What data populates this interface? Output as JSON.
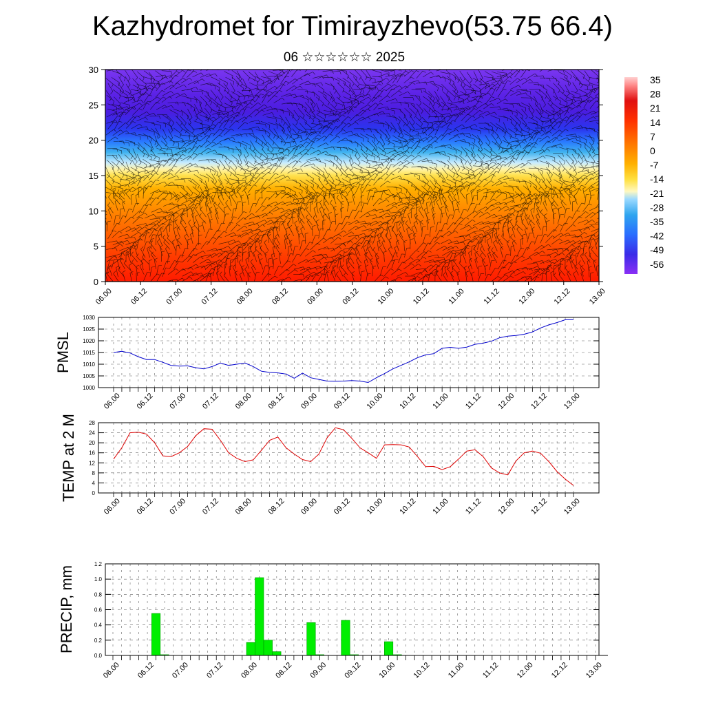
{
  "title": "Kazhydromet for Timirayzhevo(53.75 66.4)",
  "subtitle": "06 ☆☆☆☆☆☆ 2025",
  "time_labels": [
    "06.00",
    "06.12",
    "07.00",
    "07.12",
    "08.00",
    "08.12",
    "09.00",
    "09.12",
    "10.00",
    "10.12",
    "11.00",
    "11.12",
    "12.00",
    "12.12",
    "13.00"
  ],
  "colors": {
    "pmsl": "#0000cc",
    "temp": "#dd0000",
    "precip": "#00ee00",
    "precip_edge": "#009900"
  },
  "chart_data": [
    {
      "type": "heatmap",
      "name": "vertical cross-section temperature with wind barbs",
      "xlabel": "",
      "ylabel": "",
      "ylim": [
        0,
        30
      ],
      "yticks": [
        0,
        5,
        10,
        15,
        20,
        25,
        30
      ],
      "colorbar_labels": [
        "35",
        "28",
        "21",
        "14",
        "7",
        "0",
        "-7",
        "-14",
        "-21",
        "-28",
        "-35",
        "-42",
        "-49",
        "-56"
      ],
      "colorbar_range": [
        -60,
        38
      ]
    },
    {
      "type": "line",
      "ylabel": "PMSL",
      "ylim": [
        1000,
        1030
      ],
      "yticks": [
        1000,
        1005,
        1010,
        1015,
        1020,
        1025,
        1030
      ],
      "x": [
        "06.00",
        "06.03",
        "06.06",
        "06.09",
        "06.12",
        "06.15",
        "06.18",
        "06.21",
        "07.00",
        "07.03",
        "07.06",
        "07.09",
        "07.12",
        "07.15",
        "07.18",
        "07.21",
        "08.00",
        "08.03",
        "08.06",
        "08.09",
        "08.12",
        "08.15",
        "08.18",
        "08.21",
        "09.00",
        "09.03",
        "09.06",
        "09.09",
        "09.12",
        "09.15",
        "09.18",
        "09.21",
        "10.00",
        "10.03",
        "10.06",
        "10.09",
        "10.12",
        "10.15",
        "10.18",
        "10.21",
        "11.00",
        "11.03",
        "11.06",
        "11.09",
        "11.12",
        "11.15",
        "11.18",
        "11.21",
        "12.00",
        "12.03",
        "12.06",
        "12.09",
        "12.12",
        "12.15",
        "12.18",
        "12.21",
        "13.00"
      ],
      "values": [
        1015,
        1015.5,
        1014.8,
        1013.2,
        1012,
        1012,
        1010.8,
        1009.5,
        1009.2,
        1009.3,
        1008.5,
        1008,
        1009,
        1010.5,
        1009.5,
        1010,
        1010.5,
        1009,
        1007,
        1006.5,
        1006.3,
        1005.8,
        1004,
        1006.2,
        1004.2,
        1003.5,
        1002.8,
        1002.7,
        1002.8,
        1003,
        1002.8,
        1002.2,
        1004.2,
        1006,
        1008,
        1009.5,
        1011,
        1012.8,
        1014,
        1014.5,
        1016.8,
        1017.2,
        1016.8,
        1017.3,
        1018.5,
        1019,
        1019.8,
        1021.3,
        1022,
        1022.3,
        1022.8,
        1023.8,
        1025.5,
        1026.8,
        1027.8,
        1029,
        1029
      ]
    },
    {
      "type": "line",
      "ylabel": "TEMP at 2 M",
      "ylim": [
        0,
        28
      ],
      "yticks": [
        0,
        4,
        8,
        12,
        16,
        20,
        24,
        28
      ],
      "x": [
        "06.00",
        "06.03",
        "06.06",
        "06.09",
        "06.12",
        "06.15",
        "06.18",
        "06.21",
        "07.00",
        "07.03",
        "07.06",
        "07.09",
        "07.12",
        "07.15",
        "07.18",
        "07.21",
        "08.00",
        "08.03",
        "08.06",
        "08.09",
        "08.12",
        "08.15",
        "08.18",
        "08.21",
        "09.00",
        "09.03",
        "09.06",
        "09.09",
        "09.12",
        "09.15",
        "09.18",
        "09.21",
        "10.00",
        "10.03",
        "10.06",
        "10.09",
        "10.12",
        "10.15",
        "10.18",
        "10.21",
        "11.00",
        "11.03",
        "11.06",
        "11.09",
        "11.12",
        "11.15",
        "11.18",
        "11.21",
        "12.00",
        "12.03",
        "12.06",
        "12.09",
        "12.12",
        "12.15",
        "12.18",
        "12.21",
        "13.00"
      ],
      "values": [
        13.5,
        18,
        24,
        24.2,
        23.5,
        20,
        14.8,
        14.5,
        16,
        18.5,
        22.8,
        25.6,
        25.4,
        21,
        16,
        13.8,
        12.5,
        13.2,
        17,
        21,
        22.3,
        18,
        15.5,
        13.3,
        12.5,
        15.5,
        22,
        26,
        25.2,
        21.8,
        18,
        16,
        13.8,
        19.2,
        19.3,
        19.2,
        18.3,
        14.5,
        10.5,
        10.6,
        9.3,
        10.5,
        13.5,
        16.7,
        17.2,
        14.5,
        10,
        8,
        7.2,
        12.8,
        16,
        16.7,
        15.8,
        12.5,
        8.5,
        5.5,
        3
      ]
    },
    {
      "type": "bar",
      "ylabel": "PRECIP, mm",
      "ylim": [
        0,
        1.2
      ],
      "yticks": [
        0.0,
        0.2,
        0.4,
        0.6,
        0.8,
        1.0,
        1.2
      ],
      "x": [
        "06.15",
        "06.18",
        "08.00",
        "08.03",
        "08.06",
        "08.09",
        "08.21",
        "09.00",
        "09.09",
        "09.12",
        "10.00",
        "10.03"
      ],
      "values": [
        0.55,
        0.01,
        0.17,
        1.02,
        0.2,
        0.05,
        0.43,
        0.01,
        0.46,
        0.01,
        0.18,
        0.01
      ]
    }
  ]
}
